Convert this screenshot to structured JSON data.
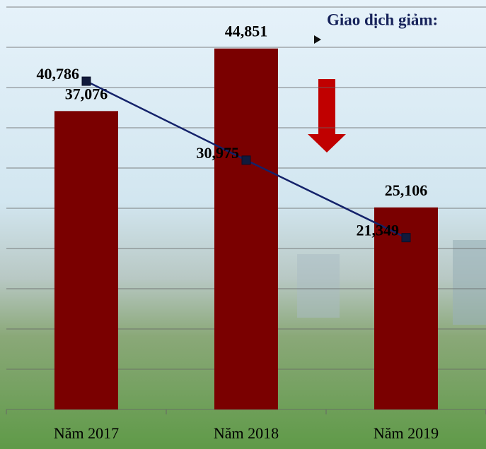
{
  "chart_data": {
    "type": "bar",
    "annotation": "Giao dịch giảm:",
    "categories": [
      "Năm 2017",
      "Năm 2018",
      "Năm 2019"
    ],
    "series": [
      {
        "type": "bar",
        "color": "#7a0000",
        "values": [
          37076,
          44851,
          25106
        ],
        "value_labels": [
          "37,076",
          "44,851",
          "25,106"
        ]
      },
      {
        "type": "line",
        "color": "#14226a",
        "values": [
          40786,
          30975,
          21349
        ],
        "value_labels": [
          "40,786",
          "30,975",
          "21,349"
        ]
      }
    ],
    "ylim": [
      0,
      50000
    ],
    "yticks": [
      0,
      5000,
      10000,
      15000,
      20000,
      25000,
      30000,
      35000,
      40000,
      45000,
      50000
    ],
    "grid": true
  }
}
